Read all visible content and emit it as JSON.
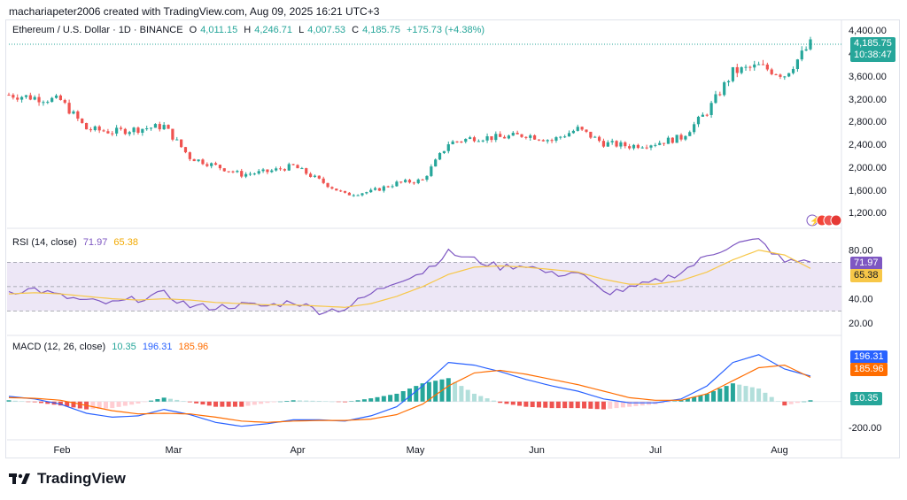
{
  "header": {
    "credit": "machariapeter2006 created with TradingView.com, Aug 09, 2025 16:21 UTC+3"
  },
  "branding": {
    "logo_text": "TradingView"
  },
  "colors": {
    "up": "#26a69a",
    "down": "#ef5350",
    "rsi": "#7e57c2",
    "rsi_ma": "#f7c748",
    "macd": "#2962ff",
    "signal": "#ff6d00",
    "band": "#ede7f6"
  },
  "chart_data": [
    {
      "type": "candlestick",
      "pane": "price",
      "title": "Ethereum / U.S. Dollar · 1D · BINANCE",
      "ohlc": {
        "o_label": "O",
        "o": "4,011.15",
        "h_label": "H",
        "h": "4,246.71",
        "l_label": "L",
        "l": "4,007.53",
        "c_label": "C",
        "c": "4,185.75",
        "change": "+175.73 (+4.38%)"
      },
      "last_price_tag": "4,185.75",
      "countdown_tag": "10:38:47",
      "y_ticks": [
        "4,400.00",
        "4,000.00",
        "3,600.00",
        "3,200.00",
        "2,800.00",
        "2,400.00",
        "2,000.00",
        "1,600.00",
        "1,200.00"
      ],
      "ylim": [
        1050,
        4450
      ],
      "x_ticks": [
        "Feb",
        "Mar",
        "Apr",
        "May",
        "Jun",
        "Jul",
        "Aug"
      ],
      "weekly_closes": [
        {
          "d": "Jan 06",
          "v": 3300
        },
        {
          "d": "Jan 13",
          "v": 3250
        },
        {
          "d": "Jan 20",
          "v": 3200
        },
        {
          "d": "Jan 27",
          "v": 2700
        },
        {
          "d": "Feb 03",
          "v": 2650
        },
        {
          "d": "Feb 10",
          "v": 2700
        },
        {
          "d": "Feb 17",
          "v": 2750
        },
        {
          "d": "Feb 24",
          "v": 2200
        },
        {
          "d": "Mar 03",
          "v": 2050
        },
        {
          "d": "Mar 10",
          "v": 1900
        },
        {
          "d": "Mar 17",
          "v": 1950
        },
        {
          "d": "Mar 24",
          "v": 2050
        },
        {
          "d": "Mar 31",
          "v": 1800
        },
        {
          "d": "Apr 07",
          "v": 1550
        },
        {
          "d": "Apr 14",
          "v": 1600
        },
        {
          "d": "Apr 21",
          "v": 1750
        },
        {
          "d": "Apr 28",
          "v": 1800
        },
        {
          "d": "May 05",
          "v": 2450
        },
        {
          "d": "May 12",
          "v": 2550
        },
        {
          "d": "May 19",
          "v": 2550
        },
        {
          "d": "May 26",
          "v": 2600
        },
        {
          "d": "Jun 02",
          "v": 2500
        },
        {
          "d": "Jun 09",
          "v": 2700
        },
        {
          "d": "Jun 16",
          "v": 2450
        },
        {
          "d": "Jun 23",
          "v": 2400
        },
        {
          "d": "Jun 30",
          "v": 2450
        },
        {
          "d": "Jul 07",
          "v": 2550
        },
        {
          "d": "Jul 14",
          "v": 3000
        },
        {
          "d": "Jul 21",
          "v": 3700
        },
        {
          "d": "Jul 28",
          "v": 3800
        },
        {
          "d": "Aug 04",
          "v": 3650
        },
        {
          "d": "Aug 09",
          "v": 4185.75
        }
      ]
    },
    {
      "type": "line",
      "pane": "rsi",
      "title": "RSI (14, close)",
      "values_label": {
        "rsi": "71.97",
        "ma": "65.38"
      },
      "y_ticks": [
        "80.00",
        "40.00",
        "20.00"
      ],
      "ylim": [
        15,
        95
      ],
      "band": [
        30,
        70
      ],
      "series": [
        {
          "name": "RSI",
          "values": [
            46,
            48,
            42,
            38,
            36,
            40,
            44,
            34,
            33,
            35,
            34,
            38,
            30,
            32,
            44,
            55,
            62,
            78,
            72,
            66,
            68,
            60,
            62,
            45,
            48,
            54,
            62,
            75,
            85,
            88,
            70,
            72
          ]
        },
        {
          "name": "MA",
          "values": [
            44,
            45,
            44,
            42,
            40,
            39,
            40,
            39,
            37,
            36,
            35,
            35,
            34,
            33,
            36,
            42,
            50,
            60,
            66,
            67,
            66,
            64,
            62,
            56,
            52,
            52,
            55,
            62,
            72,
            80,
            76,
            65
          ]
        }
      ]
    },
    {
      "type": "bar+line",
      "pane": "macd",
      "title": "MACD (12, 26, close)",
      "values_label": {
        "hist": "10.35",
        "macd": "196.31",
        "signal": "185.96"
      },
      "y_ticks": [
        "-200.00"
      ],
      "ylim": [
        -260,
        420
      ],
      "tags": {
        "macd": "196.31",
        "signal": "185.96",
        "hist": "10.35"
      },
      "series": [
        {
          "name": "MACD",
          "values": [
            40,
            20,
            -20,
            -90,
            -120,
            -110,
            -60,
            -100,
            -160,
            -190,
            -170,
            -140,
            -140,
            -150,
            -110,
            -40,
            120,
            300,
            280,
            230,
            170,
            120,
            80,
            20,
            -10,
            -10,
            20,
            120,
            300,
            360,
            250,
            196
          ]
        },
        {
          "name": "Signal",
          "values": [
            30,
            25,
            10,
            -30,
            -70,
            -95,
            -90,
            -95,
            -120,
            -150,
            -160,
            -150,
            -145,
            -145,
            -135,
            -100,
            -20,
            120,
            220,
            240,
            210,
            170,
            130,
            80,
            30,
            10,
            10,
            60,
            160,
            260,
            280,
            186
          ]
        },
        {
          "name": "Histogram",
          "values": [
            10,
            -5,
            -30,
            -60,
            -50,
            -15,
            30,
            -5,
            -40,
            -40,
            -10,
            10,
            5,
            -5,
            25,
            60,
            140,
            180,
            60,
            -10,
            -40,
            -50,
            -50,
            -60,
            -40,
            -20,
            10,
            60,
            140,
            100,
            -30,
            10
          ]
        }
      ]
    }
  ]
}
